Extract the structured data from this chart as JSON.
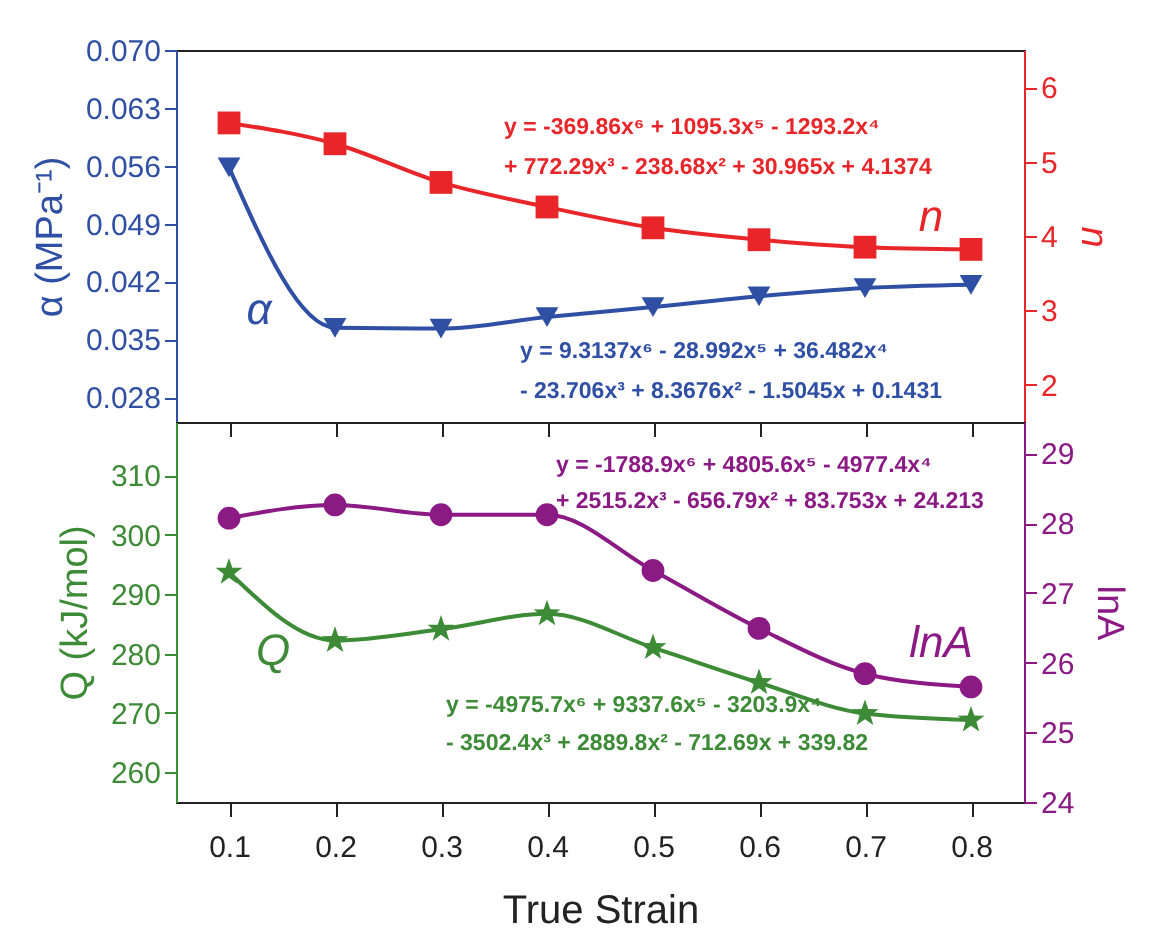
{
  "chart_data": [
    {
      "type": "line",
      "x": [
        0.1,
        0.2,
        0.3,
        0.4,
        0.5,
        0.6,
        0.7,
        0.8
      ],
      "series": [
        {
          "name": "α",
          "color": "#2e4fa3",
          "marker": "triangle",
          "values": [
            0.0558,
            0.0364,
            0.0363,
            0.0377,
            0.0389,
            0.0402,
            0.0412,
            0.0416
          ]
        },
        {
          "name": "n",
          "color": "#e8262a",
          "marker": "square",
          "axis": "y2",
          "values": [
            5.52,
            5.24,
            4.72,
            4.39,
            4.11,
            3.95,
            3.85,
            3.82
          ]
        }
      ],
      "ylabel": "α (MPa⁻¹)",
      "y2label": "n",
      "xlim": [
        0.05,
        0.85
      ],
      "xticks": [
        0.1,
        0.2,
        0.3,
        0.4,
        0.5,
        0.6,
        0.7,
        0.8
      ],
      "ylim": [
        0.025,
        0.07
      ],
      "yticks": [
        0.028,
        0.035,
        0.042,
        0.049,
        0.056,
        0.063,
        {
          "value": 0.07,
          "label": "0.070"
        }
      ],
      "y2lim": [
        1.5,
        6.5
      ],
      "y2ticks": [
        2,
        3,
        4,
        5,
        6
      ],
      "tick_labels": "y",
      "grid": false,
      "annotations": [
        "y = -369.86x⁶ + 1095.3x⁵ - 1293.2x⁴",
        "+ 772.29x³ - 238.68x² + 30.965x + 4.1374",
        "y = 9.3137x⁶ - 28.992x⁵ + 36.482x⁴",
        "- 23.706x³ + 8.3676x² - 1.5045x + 0.1431"
      ]
    },
    {
      "type": "line",
      "x": [
        0.1,
        0.2,
        0.3,
        0.4,
        0.5,
        0.6,
        0.7,
        0.8
      ],
      "series": [
        {
          "name": "Q",
          "color": "#3d8b37",
          "marker": "star",
          "values": [
            293.7,
            282.2,
            284.1,
            286.7,
            281.0,
            275.1,
            269.9,
            268.8
          ]
        },
        {
          "name": "lnA",
          "color": "#8b1a84",
          "marker": "circle",
          "axis": "y2",
          "values": [
            28.07,
            28.26,
            28.12,
            28.12,
            27.32,
            26.49,
            25.84,
            25.65
          ]
        }
      ],
      "xlabel": "True Strain",
      "ylabel": "Q (kJ/mol)",
      "y2label": "lnA",
      "xlim": [
        0.05,
        0.85
      ],
      "xticks": [
        0.1,
        0.2,
        0.3,
        0.4,
        0.5,
        0.6,
        0.7,
        0.8
      ],
      "ylim": [
        255,
        319
      ],
      "yticks": [
        260,
        270,
        280,
        290,
        300,
        310
      ],
      "y2lim": [
        24,
        29.45
      ],
      "y2ticks": [
        24,
        25,
        26,
        27,
        28,
        29
      ],
      "grid": false,
      "annotations": [
        "y = -1788.9x⁶ + 4805.6x⁵ - 4977.4x⁴",
        "+ 2515.2x³ - 656.79x² + 83.753x + 24.213",
        "y = -4975.7x⁶ + 9337.6x⁵ - 3203.9x⁴",
        "- 3502.4x³ + 2889.8x² - 712.69x + 339.82"
      ]
    }
  ]
}
